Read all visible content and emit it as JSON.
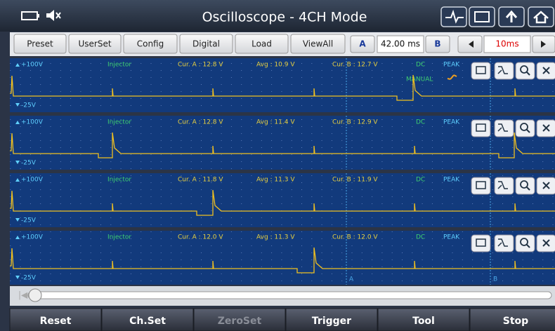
{
  "header": {
    "title": "Oscilloscope - 4CH Mode"
  },
  "toolbar": {
    "buttons": [
      "Preset",
      "UserSet",
      "Config",
      "Digital",
      "Load",
      "ViewAll"
    ],
    "cursor_a": "A",
    "cursor_time": "42.00 ms",
    "cursor_b": "B",
    "timebase": "10ms"
  },
  "channels": [
    {
      "top": "+100V",
      "name": "Injector",
      "cur_a": "Cur. A : 12.8 V",
      "avg": "Avg : 10.9 V",
      "cur_b": "Cur. B : 12.7 V",
      "coupling": "DC",
      "mode": "PEAK",
      "bottom": "-25V",
      "trigger": "MANUAL"
    },
    {
      "top": "+100V",
      "name": "Injector",
      "cur_a": "Cur. A : 12.8 V",
      "avg": "Avg : 11.4 V",
      "cur_b": "Cur. B : 12.9 V",
      "coupling": "DC",
      "mode": "PEAK",
      "bottom": "-25V"
    },
    {
      "top": "+100V",
      "name": "Injector",
      "cur_a": "Cur. A : 11.8 V",
      "avg": "Avg : 11.3 V",
      "cur_b": "Cur. B : 11.9 V",
      "coupling": "DC",
      "mode": "PEAK",
      "bottom": "-25V"
    },
    {
      "top": "+100V",
      "name": "Injector",
      "cur_a": "Cur. A : 12.0 V",
      "avg": "Avg : 11.3 V",
      "cur_b": "Cur. B : 12.0 V",
      "coupling": "DC",
      "mode": "PEAK",
      "bottom": "-25V"
    }
  ],
  "cursor_labels": [
    "A",
    "B"
  ],
  "bottom_buttons": [
    "Reset",
    "Ch.Set",
    "ZeroSet",
    "Trigger",
    "Tool",
    "Stop"
  ]
}
